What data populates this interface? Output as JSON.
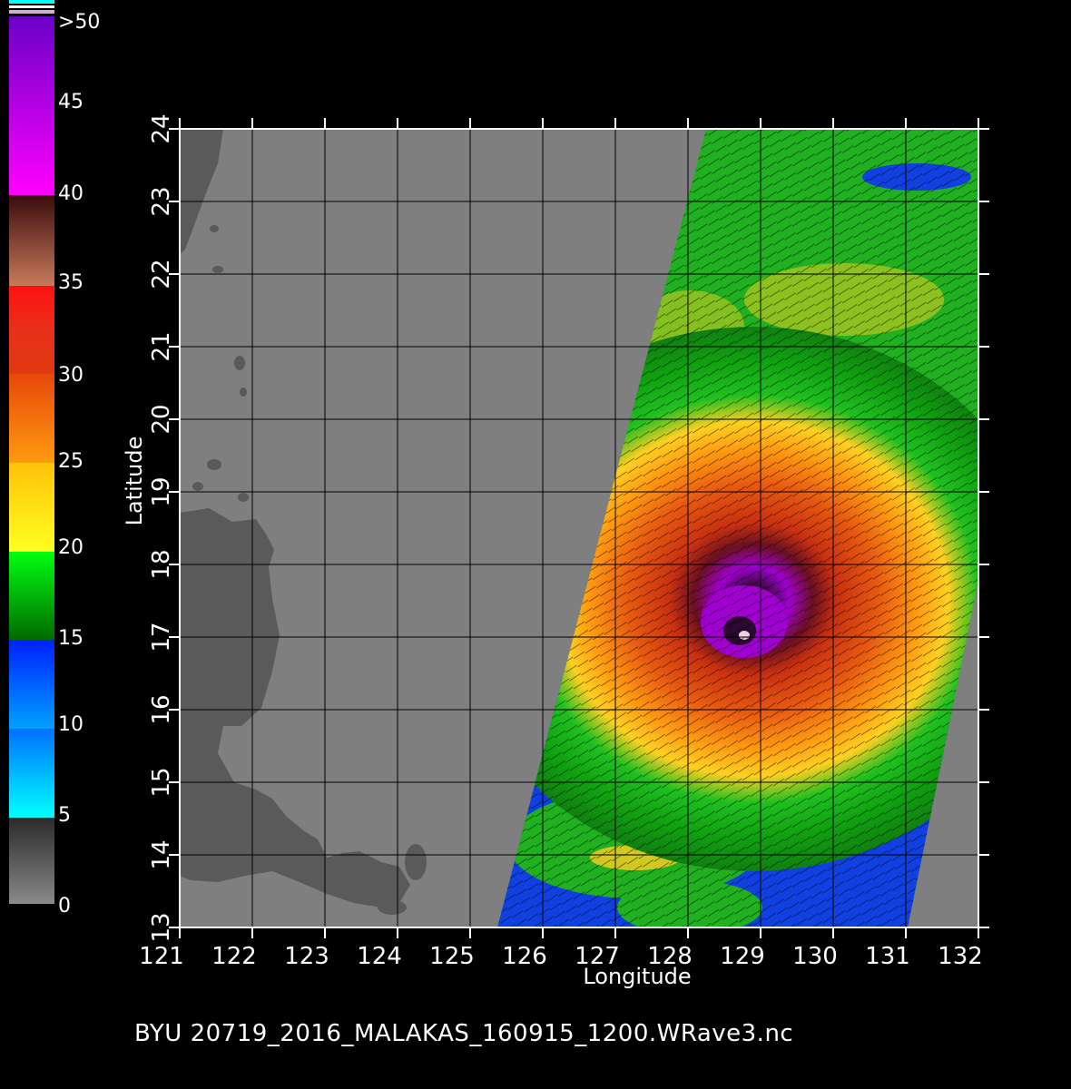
{
  "colorbar": {
    "labels": [
      ">50",
      "45",
      "40",
      "35",
      "30",
      "25",
      "20",
      "15",
      "10",
      "5",
      "0"
    ]
  },
  "axes": {
    "xlabel": "Longitude",
    "ylabel": "Latitude",
    "x_ticks": [
      "121",
      "122",
      "123",
      "124",
      "125",
      "126",
      "127",
      "128",
      "129",
      "130",
      "131",
      "132"
    ],
    "y_ticks": [
      "13",
      "14",
      "15",
      "16",
      "17",
      "18",
      "19",
      "20",
      "21",
      "22",
      "23",
      "24"
    ],
    "xlim": [
      121,
      132
    ],
    "ylim": [
      13,
      24
    ]
  },
  "footer": {
    "filename": "BYU  20719_2016_MALAKAS_160915_1200.WRave3.nc"
  },
  "colors": {
    "ocean": "#7f7f7f",
    "land": "#5a5a5a",
    "background": "#000000",
    "grid": "#000000"
  },
  "storm": {
    "name": "MALAKAS",
    "center_lon": 128.8,
    "center_lat": 17.2
  }
}
